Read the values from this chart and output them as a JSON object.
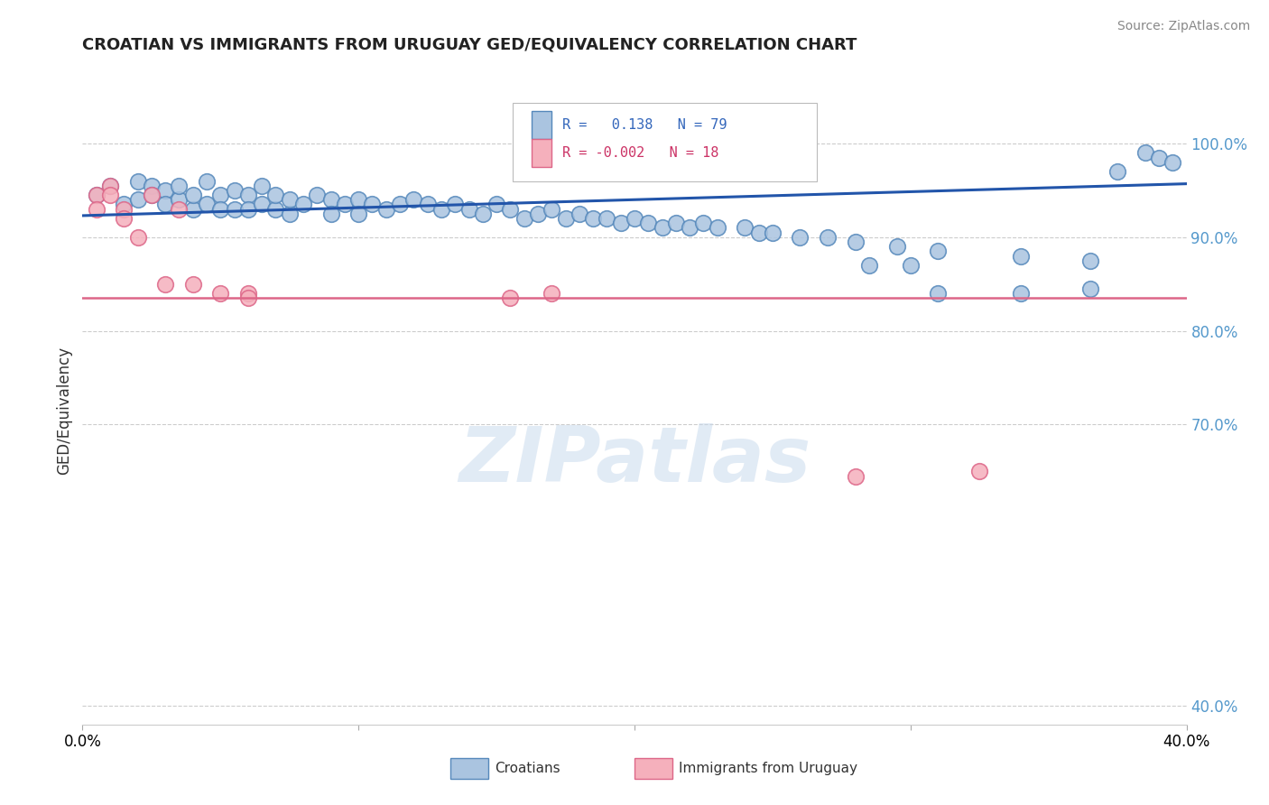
{
  "title": "CROATIAN VS IMMIGRANTS FROM URUGUAY GED/EQUIVALENCY CORRELATION CHART",
  "source": "Source: ZipAtlas.com",
  "ylabel": "GED/Equivalency",
  "right_yticks": [
    "100.0%",
    "90.0%",
    "80.0%",
    "70.0%",
    "40.0%"
  ],
  "right_ytick_vals": [
    1.0,
    0.9,
    0.8,
    0.7,
    0.4
  ],
  "xmin": 0.0,
  "xmax": 0.4,
  "ymin": 0.38,
  "ymax": 1.05,
  "blue_color": "#aac4e0",
  "blue_edge": "#5588bb",
  "pink_color": "#f5b0bc",
  "pink_edge": "#dd6688",
  "blue_line_color": "#2255aa",
  "pink_line_color": "#dd6688",
  "grid_color": "#cccccc",
  "background_color": "#ffffff",
  "watermark": "ZIPatlas",
  "blue_scatter_x": [
    0.005,
    0.01,
    0.015,
    0.02,
    0.02,
    0.025,
    0.025,
    0.03,
    0.03,
    0.035,
    0.035,
    0.04,
    0.04,
    0.045,
    0.045,
    0.05,
    0.05,
    0.055,
    0.055,
    0.06,
    0.06,
    0.065,
    0.065,
    0.07,
    0.07,
    0.075,
    0.075,
    0.08,
    0.085,
    0.09,
    0.09,
    0.095,
    0.1,
    0.1,
    0.105,
    0.11,
    0.115,
    0.12,
    0.125,
    0.13,
    0.135,
    0.14,
    0.145,
    0.15,
    0.155,
    0.16,
    0.165,
    0.17,
    0.175,
    0.18,
    0.185,
    0.19,
    0.195,
    0.2,
    0.205,
    0.21,
    0.215,
    0.22,
    0.225,
    0.23,
    0.24,
    0.245,
    0.25,
    0.26,
    0.27,
    0.28,
    0.295,
    0.31,
    0.34,
    0.365,
    0.31,
    0.34,
    0.365,
    0.375,
    0.385,
    0.39,
    0.395,
    0.285,
    0.3
  ],
  "blue_scatter_y": [
    0.945,
    0.955,
    0.935,
    0.96,
    0.94,
    0.955,
    0.945,
    0.95,
    0.935,
    0.94,
    0.955,
    0.93,
    0.945,
    0.935,
    0.96,
    0.945,
    0.93,
    0.93,
    0.95,
    0.945,
    0.93,
    0.935,
    0.955,
    0.93,
    0.945,
    0.925,
    0.94,
    0.935,
    0.945,
    0.94,
    0.925,
    0.935,
    0.94,
    0.925,
    0.935,
    0.93,
    0.935,
    0.94,
    0.935,
    0.93,
    0.935,
    0.93,
    0.925,
    0.935,
    0.93,
    0.92,
    0.925,
    0.93,
    0.92,
    0.925,
    0.92,
    0.92,
    0.915,
    0.92,
    0.915,
    0.91,
    0.915,
    0.91,
    0.915,
    0.91,
    0.91,
    0.905,
    0.905,
    0.9,
    0.9,
    0.895,
    0.89,
    0.885,
    0.88,
    0.875,
    0.84,
    0.84,
    0.845,
    0.97,
    0.99,
    0.985,
    0.98,
    0.87,
    0.87
  ],
  "pink_scatter_x": [
    0.005,
    0.005,
    0.01,
    0.01,
    0.015,
    0.015,
    0.02,
    0.025,
    0.03,
    0.035,
    0.04,
    0.05,
    0.06,
    0.155,
    0.06,
    0.17,
    0.325,
    0.28
  ],
  "pink_scatter_y": [
    0.945,
    0.93,
    0.955,
    0.945,
    0.93,
    0.92,
    0.9,
    0.945,
    0.85,
    0.93,
    0.85,
    0.84,
    0.84,
    0.835,
    0.835,
    0.84,
    0.65,
    0.645
  ],
  "blue_trend_x": [
    0.0,
    0.4
  ],
  "blue_trend_y": [
    0.923,
    0.957
  ],
  "pink_trend_y": [
    0.835,
    0.835
  ]
}
